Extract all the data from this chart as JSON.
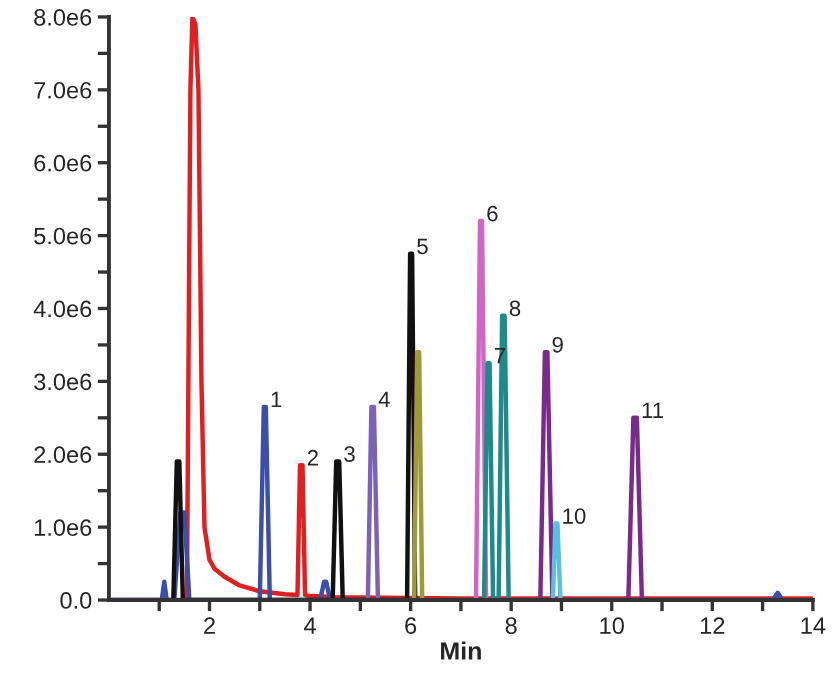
{
  "chart_data": {
    "type": "line",
    "xlabel": "Min",
    "xlim": [
      0,
      14
    ],
    "ylim": [
      0,
      8000000
    ],
    "xticks": [
      {
        "value": 1,
        "label": null
      },
      2,
      {
        "value": 3,
        "label": null
      },
      4,
      {
        "value": 5,
        "label": null
      },
      6,
      {
        "value": 7,
        "label": null
      },
      8,
      {
        "value": 9,
        "label": null
      },
      10,
      {
        "value": 11,
        "label": null
      },
      12,
      {
        "value": 13,
        "label": null
      },
      14
    ],
    "yticks": [
      {
        "value": 0,
        "label": "0.0"
      },
      {
        "value": 500000,
        "label": null
      },
      {
        "value": 1000000,
        "label": "1.0e6"
      },
      {
        "value": 1500000,
        "label": null
      },
      {
        "value": 2000000,
        "label": "2.0e6"
      },
      {
        "value": 2500000,
        "label": null
      },
      {
        "value": 3000000,
        "label": "3.0e6"
      },
      {
        "value": 3500000,
        "label": null
      },
      {
        "value": 4000000,
        "label": "4.0e6"
      },
      {
        "value": 4500000,
        "label": null
      },
      {
        "value": 5000000,
        "label": "5.0e6"
      },
      {
        "value": 5500000,
        "label": null
      },
      {
        "value": 6000000,
        "label": "6.0e6"
      },
      {
        "value": 6500000,
        "label": null
      },
      {
        "value": 7000000,
        "label": "7.0e6"
      },
      {
        "value": 7500000,
        "label": null
      },
      {
        "value": 8000000,
        "label": "8.0e6"
      }
    ],
    "grid": false,
    "legend": false,
    "marker": "none",
    "line_style": "solid",
    "series": [
      {
        "color": "#e02020",
        "x": [
          0,
          1.55,
          1.62,
          1.66,
          1.72,
          1.78,
          1.84,
          1.9,
          2.0,
          2.1,
          2.3,
          2.6,
          3.0,
          3.5,
          3.75,
          3.8,
          3.85,
          3.9,
          3.95,
          4.5,
          5.5,
          7,
          14
        ],
        "values": [
          0,
          0,
          7000000,
          8000000,
          7900000,
          7000000,
          3000000,
          1000000,
          550000,
          430000,
          320000,
          200000,
          120000,
          80000,
          70000,
          1850000,
          1850000,
          70000,
          60000,
          40000,
          30000,
          20000,
          20000
        ]
      },
      {
        "color": "#3b4fa8",
        "x": [
          0,
          1.05,
          1.1,
          1.15,
          1.3,
          1.42,
          1.5,
          1.6,
          3.0,
          3.08,
          3.12,
          3.2,
          4.2,
          4.28,
          4.32,
          4.4,
          13.2,
          13.3,
          13.4
        ],
        "values": [
          0,
          0,
          250000,
          0,
          0,
          1200000,
          1200000,
          0,
          0,
          2650000,
          2650000,
          0,
          0,
          250000,
          250000,
          0,
          0,
          100000,
          0
        ]
      },
      {
        "color": "#111111",
        "x": [
          1.28,
          1.35,
          1.4,
          1.47,
          4.45,
          4.52,
          4.58,
          4.65,
          5.93,
          5.99,
          6.03,
          6.09
        ],
        "values": [
          0,
          1900000,
          1900000,
          0,
          0,
          1900000,
          1900000,
          0,
          0,
          4750000,
          4750000,
          0
        ]
      },
      {
        "color": "#7b62b8",
        "x": [
          5.15,
          5.22,
          5.27,
          5.35
        ],
        "values": [
          0,
          2650000,
          2650000,
          0
        ]
      },
      {
        "color": "#9c9a3a",
        "x": [
          6.07,
          6.13,
          6.17,
          6.23
        ],
        "values": [
          0,
          3400000,
          3400000,
          0
        ]
      },
      {
        "color": "#d065c5",
        "x": [
          7.3,
          7.38,
          7.42,
          7.5
        ],
        "values": [
          0,
          5200000,
          5200000,
          0
        ]
      },
      {
        "color": "#1f8a8a",
        "x": [
          7.46,
          7.53,
          7.57,
          7.64,
          7.75,
          7.82,
          7.87,
          7.95
        ],
        "values": [
          0,
          3250000,
          3250000,
          0,
          0,
          3900000,
          3900000,
          0
        ]
      },
      {
        "color": "#7a2a8a",
        "x": [
          8.58,
          8.67,
          8.72,
          8.82,
          10.33,
          10.43,
          10.5,
          10.6
        ],
        "values": [
          0,
          3400000,
          3400000,
          0,
          0,
          2500000,
          2500000,
          0
        ]
      },
      {
        "color": "#5bc0e0",
        "x": [
          8.83,
          8.88,
          8.92,
          8.98
        ],
        "values": [
          0,
          1050000,
          1050000,
          0
        ]
      }
    ],
    "annotations": [
      {
        "text": "1",
        "x": 3.12,
        "y": 2650000
      },
      {
        "text": "2",
        "x": 3.85,
        "y": 1850000
      },
      {
        "text": "3",
        "x": 4.58,
        "y": 1900000
      },
      {
        "text": "4",
        "x": 5.27,
        "y": 2650000
      },
      {
        "text": "5",
        "x": 6.03,
        "y": 4750000
      },
      {
        "text": "6",
        "x": 7.42,
        "y": 5200000
      },
      {
        "text": "7",
        "x": 7.57,
        "y": 3250000
      },
      {
        "text": "8",
        "x": 7.87,
        "y": 3900000
      },
      {
        "text": "9",
        "x": 8.72,
        "y": 3400000
      },
      {
        "text": "10",
        "x": 8.92,
        "y": 1050000
      },
      {
        "text": "11",
        "x": 10.5,
        "y": 2500000
      }
    ]
  }
}
